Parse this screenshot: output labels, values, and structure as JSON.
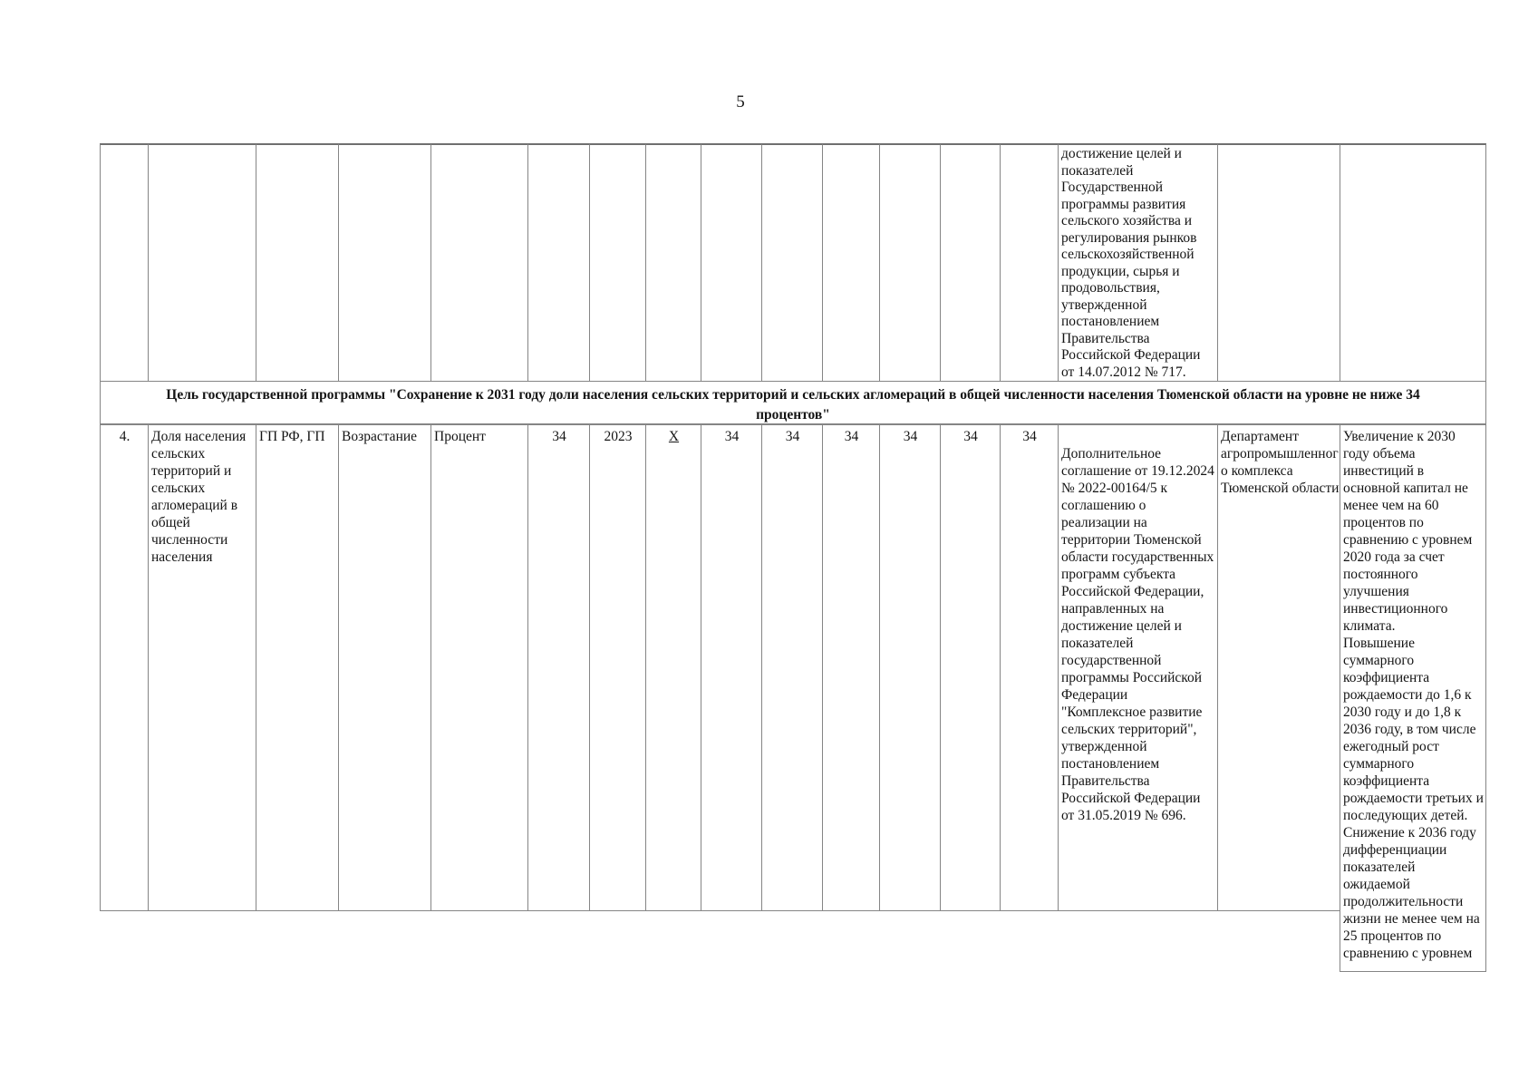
{
  "page": {
    "number": "5"
  },
  "style": {
    "text_color": "#141414",
    "grid_color": "#858585"
  },
  "continued_row": {
    "justification": "достижение целей и показателей Государственной программы развития сельского хозяйства и регулирования рынков сельскохозяйственной продукции, сырья и продовольствия, утвержденной постановлением Правительства Российской Федерации от 14.07.2012 № 717."
  },
  "goal_row": {
    "text": "Цель государственной программы \"Сохранение к 2031 году доли населения сельских территорий и сельских агломераций в общей численности населения Тюменской области на уровне не ниже  34 процентов\""
  },
  "row4": {
    "number": "4.",
    "indicator": "Доля населения сельских территорий и сельских агломераций в общей численности населения",
    "program": "ГП РФ, ГП",
    "direction": "Возрастание",
    "unit": "Процент",
    "base_value": "34",
    "base_year": "2023",
    "not_applicable": "X",
    "values": [
      "34",
      "34",
      "34",
      "34",
      "34",
      "34"
    ],
    "justification": "\nДополнительное соглашение от 19.12.2024 № 2022-00164/5 к соглашению о реализации на территории Тюменской области государственных программ субъекта Российской Федерации, направленных на достижение целей и показателей государственной программы Российской Федерации \"Комплексное развитие сельских территорий\", утвержденной постановлением Правительства Российской Федерации от 31.05.2019 № 696.",
    "department": "Департамент агропромышленного комплекса Тюменской области",
    "effect": "Увеличение к 2030 году объема инвестиций в основной капитал не менее чем на 60 процентов по сравнению с уровнем 2020 года за счет постоянного улучшения инвестиционного климата.\nПовышение суммарного коэффициента рождаемости до 1,6 к 2030 году и до 1,8 к 2036 году, в том числе ежегодный рост суммарного коэффициента рождаемости третьих и последующих детей.\nСнижение к 2036 году дифференциации показателей ожидаемой продолжительности жизни не менее чем на 25 процентов по сравнению с уровнем"
  }
}
